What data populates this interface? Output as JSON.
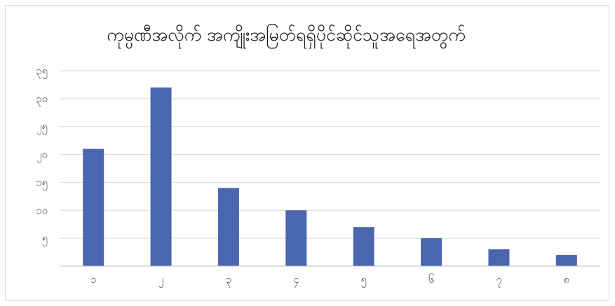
{
  "chart_data": {
    "type": "bar",
    "title": "ကုမ္ပဏီအလိုက် အကျိုးအမြတ်ရရှိပိုင်ဆိုင်သူအရေအတွက်",
    "categories": [
      "၁",
      "၂",
      "၃",
      "၄",
      "၅",
      "၆",
      "၇",
      "၈"
    ],
    "values": [
      21,
      32,
      14,
      10,
      7,
      5,
      3,
      2
    ],
    "ylim": [
      0,
      35
    ],
    "yticks": [
      0,
      5,
      10,
      15,
      20,
      25,
      30,
      35
    ],
    "ytick_labels": [
      "",
      "၅",
      "၁၀",
      "၁၅",
      "၂၀",
      "၂၅",
      "၃၀",
      "၃၅"
    ],
    "grid": true,
    "legend": "none",
    "bar_color": "#4a66ae"
  }
}
